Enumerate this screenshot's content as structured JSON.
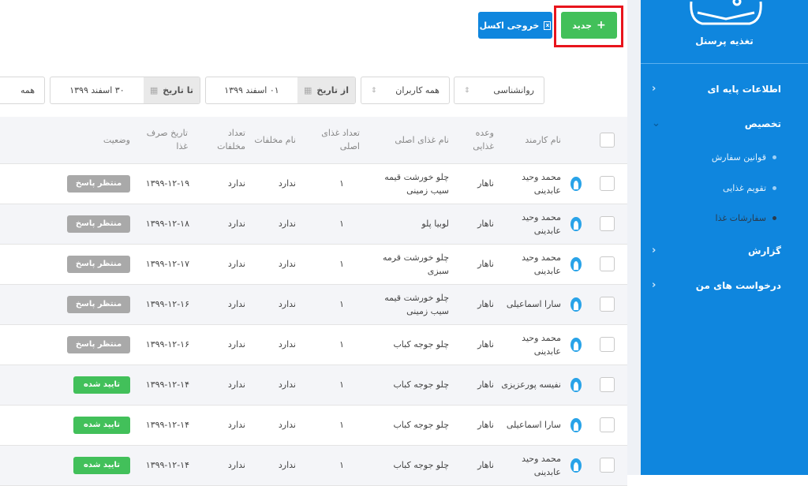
{
  "toolbar": {
    "new_label": "جدید",
    "excel_label": "خروجی اکسل"
  },
  "filters": {
    "department": "روانشناسی",
    "users": "همه کاربران",
    "from_label": "از تاریخ",
    "from_value": "۰۱ اسفند ۱۳۹۹",
    "to_label": "تا تاریخ",
    "to_value": "۳۰ اسفند ۱۳۹۹",
    "status": "همه"
  },
  "table": {
    "headers": [
      "نام کارمند",
      "وعده غذایی",
      "نام غذای اصلی",
      "تعداد غذای اصلی",
      "نام مخلفات",
      "تعداد مخلفات",
      "تاریخ صرف غذا",
      "وضعیت"
    ],
    "rows": [
      {
        "name": "محمد وحید عابدینی",
        "meal": "ناهار",
        "food": "چلو خورشت قیمه سیب زمینی",
        "count": "۱",
        "side": "ندارد",
        "side_count": "ندارد",
        "date": "۱۳۹۹-۱۲-۱۹",
        "status": "منتظر پاسخ"
      },
      {
        "name": "محمد وحید عابدینی",
        "meal": "ناهار",
        "food": "لوبیا پلو",
        "count": "۱",
        "side": "ندارد",
        "side_count": "ندارد",
        "date": "۱۳۹۹-۱۲-۱۸",
        "status": "منتظر پاسخ"
      },
      {
        "name": "محمد وحید عابدینی",
        "meal": "ناهار",
        "food": "چلو خورشت قرمه سبزی",
        "count": "۱",
        "side": "ندارد",
        "side_count": "ندارد",
        "date": "۱۳۹۹-۱۲-۱۷",
        "status": "منتظر پاسخ"
      },
      {
        "name": "سارا اسماعیلی",
        "meal": "ناهار",
        "food": "چلو خورشت قیمه سیب زمینی",
        "count": "۱",
        "side": "ندارد",
        "side_count": "ندارد",
        "date": "۱۳۹۹-۱۲-۱۶",
        "status": "منتظر پاسخ"
      },
      {
        "name": "محمد وحید عابدینی",
        "meal": "ناهار",
        "food": "چلو جوجه کباب",
        "count": "۱",
        "side": "ندارد",
        "side_count": "ندارد",
        "date": "۱۳۹۹-۱۲-۱۶",
        "status": "منتظر پاسخ"
      },
      {
        "name": "نفیسه پورعزیزی",
        "meal": "ناهار",
        "food": "چلو جوجه کباب",
        "count": "۱",
        "side": "ندارد",
        "side_count": "ندارد",
        "date": "۱۳۹۹-۱۲-۱۴",
        "status": "تایید شده"
      },
      {
        "name": "سارا اسماعیلی",
        "meal": "ناهار",
        "food": "چلو جوجه کباب",
        "count": "۱",
        "side": "ندارد",
        "side_count": "ندارد",
        "date": "۱۳۹۹-۱۲-۱۴",
        "status": "تایید شده"
      },
      {
        "name": "محمد وحید عابدینی",
        "meal": "ناهار",
        "food": "چلو جوجه کباب",
        "count": "۱",
        "side": "ندارد",
        "side_count": "ندارد",
        "date": "۱۳۹۹-۱۲-۱۴",
        "status": "تایید شده"
      }
    ]
  },
  "sidebar": {
    "title": "تغذیه پرسنل",
    "items": [
      "اطلاعات پایه ای",
      "تخصیص",
      "گزارش",
      "درخواست های من"
    ],
    "subitems": [
      "قوانین سفارش",
      "تقویم غذایی",
      "سفارشات غذا"
    ]
  },
  "colors": {
    "sidebar": "#0f86de",
    "new": "#42c05a",
    "excel": "#0f86de",
    "pending": "#a9a9a9",
    "approved": "#42c05a",
    "highlight": "#e8141c"
  }
}
